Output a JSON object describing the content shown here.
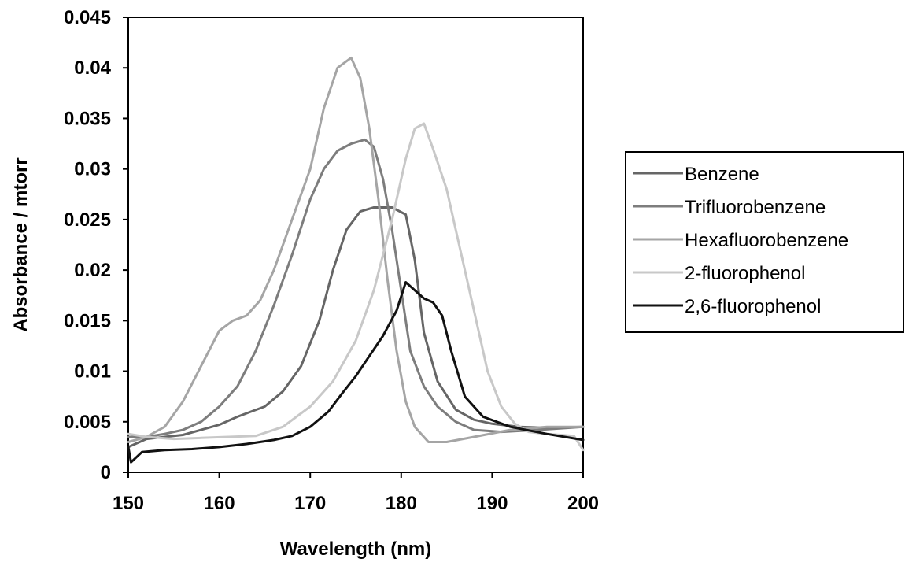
{
  "chart_data": {
    "type": "line",
    "title": "",
    "xlabel": "Wavelength (nm)",
    "ylabel": "Absorbance / mtorr",
    "xlim": [
      150,
      200
    ],
    "ylim": [
      0,
      0.045
    ],
    "xticks": [
      "150",
      "160",
      "170",
      "180",
      "190",
      "200"
    ],
    "yticks": [
      "0",
      "0.005",
      "0.01",
      "0.015",
      "0.02",
      "0.025",
      "0.03",
      "0.035",
      "0.04",
      "0.045"
    ],
    "grid": false,
    "legend_position": "right",
    "series": [
      {
        "name": "Benzene",
        "color": "#666666",
        "x": [
          150,
          152,
          154,
          156,
          158,
          160,
          162,
          163.5,
          165,
          167,
          169,
          171,
          172.5,
          174,
          175.5,
          177,
          179,
          180.5,
          181.5,
          182.5,
          184,
          186,
          188,
          190,
          193,
          196,
          200
        ],
        "y": [
          0.0025,
          0.0033,
          0.0035,
          0.0037,
          0.0042,
          0.0047,
          0.0055,
          0.006,
          0.0065,
          0.008,
          0.0105,
          0.015,
          0.02,
          0.024,
          0.0258,
          0.0262,
          0.0262,
          0.0255,
          0.021,
          0.0138,
          0.009,
          0.0062,
          0.0052,
          0.0048,
          0.0045,
          0.0044,
          0.0045
        ]
      },
      {
        "name": "Trifluorobenzene",
        "color": "#7d7d7d",
        "x": [
          150,
          152,
          154,
          156,
          158,
          160,
          162,
          164,
          166,
          168,
          170,
          171.5,
          173,
          174.5,
          176,
          177,
          178,
          179,
          180,
          181,
          182.5,
          184,
          186,
          188,
          191,
          195,
          200
        ],
        "y": [
          0.0035,
          0.0035,
          0.0038,
          0.0042,
          0.005,
          0.0065,
          0.0085,
          0.012,
          0.0165,
          0.0215,
          0.027,
          0.03,
          0.0318,
          0.0325,
          0.0329,
          0.0322,
          0.029,
          0.024,
          0.018,
          0.012,
          0.0085,
          0.0065,
          0.005,
          0.0042,
          0.004,
          0.0042,
          0.0045
        ]
      },
      {
        "name": "Hexafluorobenzene",
        "color": "#a5a5a5",
        "x": [
          150,
          152,
          154,
          156,
          158,
          160,
          161.5,
          163,
          164.5,
          166,
          168,
          170,
          171.5,
          173,
          174.5,
          175.5,
          176.5,
          177.5,
          178.5,
          179.5,
          180.5,
          181.5,
          183,
          185,
          188,
          192,
          196,
          200
        ],
        "y": [
          0.003,
          0.0035,
          0.0045,
          0.007,
          0.0105,
          0.014,
          0.015,
          0.0155,
          0.017,
          0.02,
          0.025,
          0.03,
          0.036,
          0.04,
          0.041,
          0.039,
          0.034,
          0.027,
          0.019,
          0.012,
          0.007,
          0.0045,
          0.003,
          0.003,
          0.0035,
          0.0042,
          0.0045,
          0.0045
        ]
      },
      {
        "name": "2-fluorophenol",
        "color": "#c8c8c8",
        "x": [
          150,
          152,
          155,
          158,
          161,
          164,
          167,
          170,
          172.5,
          175,
          177,
          179,
          180.5,
          181.5,
          182.5,
          183.5,
          185,
          186.5,
          188,
          189.5,
          191,
          192.5,
          194,
          196,
          199,
          200
        ],
        "y": [
          0.0038,
          0.0035,
          0.0033,
          0.0034,
          0.0035,
          0.0036,
          0.0045,
          0.0065,
          0.009,
          0.013,
          0.018,
          0.025,
          0.031,
          0.034,
          0.0345,
          0.032,
          0.028,
          0.022,
          0.016,
          0.01,
          0.0065,
          0.0048,
          0.004,
          0.0038,
          0.0036,
          0.0022
        ]
      },
      {
        "name": "2,6-fluorophenol",
        "color": "#111111",
        "x": [
          150,
          150.3,
          151.5,
          154,
          157,
          160,
          163,
          166,
          168,
          170,
          172,
          173.5,
          175,
          176.5,
          178,
          179.5,
          180.5,
          181.5,
          182.5,
          183.5,
          184.5,
          185.5,
          187,
          189,
          192,
          196,
          200
        ],
        "y": [
          0.0025,
          0.001,
          0.002,
          0.0022,
          0.0023,
          0.0025,
          0.0028,
          0.0032,
          0.0036,
          0.0045,
          0.006,
          0.0078,
          0.0095,
          0.0115,
          0.0135,
          0.016,
          0.0188,
          0.018,
          0.0172,
          0.0168,
          0.0155,
          0.012,
          0.0075,
          0.0055,
          0.0045,
          0.0038,
          0.0032
        ]
      }
    ]
  }
}
